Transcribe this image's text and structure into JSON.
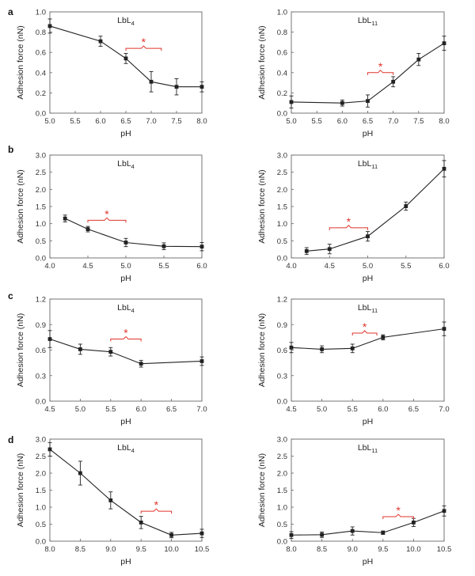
{
  "chart_data": [
    {
      "panel": "a",
      "label": "LbL4",
      "label_base": "LbL",
      "label_sub": "4",
      "type": "line",
      "xlabel": "pH",
      "ylabel": "Adhesion force (nN)",
      "xlim": [
        5.0,
        8.0
      ],
      "ylim": [
        0.0,
        1.0
      ],
      "xticks": [
        "5.0",
        "5.5",
        "6.0",
        "6.5",
        "7.0",
        "7.5",
        "8.0"
      ],
      "yticks": [
        "0.0",
        "0.2",
        "0.4",
        "0.6",
        "0.8",
        "1.0"
      ],
      "x": [
        5.0,
        6.0,
        6.5,
        7.0,
        7.5,
        8.0
      ],
      "y": [
        0.86,
        0.71,
        0.54,
        0.31,
        0.26,
        0.26
      ],
      "err": [
        0.07,
        0.05,
        0.05,
        0.1,
        0.08,
        0.05
      ],
      "significance": {
        "x1": 6.5,
        "x2": 7.2,
        "y": 0.64,
        "symbol": "*"
      }
    },
    {
      "panel": "",
      "label": "LbL11",
      "label_base": "LbL",
      "label_sub": "11",
      "type": "line",
      "xlabel": "pH",
      "ylabel": "Adhesion force (nN)",
      "xlim": [
        5.0,
        8.0
      ],
      "ylim": [
        0.0,
        1.0
      ],
      "xticks": [
        "5.0",
        "5.5",
        "6.0",
        "6.5",
        "7.0",
        "7.5",
        "8.0"
      ],
      "yticks": [
        "0.0",
        "0.2",
        "0.4",
        "0.6",
        "0.8",
        "1.0"
      ],
      "x": [
        5.0,
        6.0,
        6.5,
        7.0,
        7.5,
        8.0
      ],
      "y": [
        0.11,
        0.1,
        0.12,
        0.31,
        0.53,
        0.69
      ],
      "err": [
        0.06,
        0.03,
        0.06,
        0.05,
        0.06,
        0.07
      ],
      "significance": {
        "x1": 6.5,
        "x2": 7.0,
        "y": 0.4,
        "symbol": "*"
      }
    },
    {
      "panel": "b",
      "label": "LbL4",
      "label_base": "LbL",
      "label_sub": "4",
      "type": "line",
      "xlabel": "pH",
      "ylabel": "Adhesion force (nN)",
      "xlim": [
        4.0,
        6.0
      ],
      "ylim": [
        0.0,
        3.0
      ],
      "xticks": [
        "4.0",
        "4.5",
        "5.0",
        "5.5",
        "6.0"
      ],
      "yticks": [
        "0.0",
        "0.5",
        "1.0",
        "1.5",
        "2.0",
        "2.5",
        "3.0"
      ],
      "x": [
        4.2,
        4.5,
        5.0,
        5.5,
        6.0
      ],
      "y": [
        1.15,
        0.84,
        0.45,
        0.34,
        0.33
      ],
      "err": [
        0.1,
        0.08,
        0.12,
        0.1,
        0.12
      ],
      "significance": {
        "x1": 4.5,
        "x2": 5.0,
        "y": 1.1,
        "symbol": "*"
      }
    },
    {
      "panel": "",
      "label": "LbL11",
      "label_base": "LbL",
      "label_sub": "11",
      "type": "line",
      "xlabel": "pH",
      "ylabel": "Adhesion force (nN)",
      "xlim": [
        4.0,
        6.0
      ],
      "ylim": [
        0.0,
        3.0
      ],
      "xticks": [
        "4.0",
        "4.5",
        "5.0",
        "5.5",
        "6.0"
      ],
      "yticks": [
        "0.0",
        "0.5",
        "1.0",
        "1.5",
        "2.0",
        "2.5",
        "3.0"
      ],
      "x": [
        4.2,
        4.5,
        5.0,
        5.5,
        6.0
      ],
      "y": [
        0.2,
        0.26,
        0.63,
        1.51,
        2.6
      ],
      "err": [
        0.1,
        0.14,
        0.14,
        0.12,
        0.24
      ],
      "significance": {
        "x1": 4.5,
        "x2": 5.0,
        "y": 0.88,
        "symbol": "*"
      }
    },
    {
      "panel": "c",
      "label": "LbL4",
      "label_base": "LbL",
      "label_sub": "4",
      "type": "line",
      "xlabel": "pH",
      "ylabel": "Adhesion force (nN)",
      "xlim": [
        4.5,
        7.0
      ],
      "ylim": [
        0.0,
        1.2
      ],
      "xticks": [
        "4.5",
        "5.0",
        "5.5",
        "6.0",
        "6.5",
        "7.0"
      ],
      "yticks": [
        "0.0",
        "0.3",
        "0.6",
        "0.9",
        "1.2"
      ],
      "x": [
        4.5,
        5.0,
        5.5,
        6.0,
        7.0
      ],
      "y": [
        0.73,
        0.61,
        0.58,
        0.44,
        0.47
      ],
      "err": [
        0.1,
        0.06,
        0.05,
        0.04,
        0.05
      ],
      "significance": {
        "x1": 5.5,
        "x2": 6.0,
        "y": 0.73,
        "symbol": "*"
      }
    },
    {
      "panel": "",
      "label": "LbL11",
      "label_base": "LbL",
      "label_sub": "11",
      "type": "line",
      "xlabel": "pH",
      "ylabel": "Adhesion force (nN)",
      "xlim": [
        4.5,
        7.0
      ],
      "ylim": [
        0.0,
        1.2
      ],
      "xticks": [
        "4.5",
        "5.0",
        "5.5",
        "6.0",
        "6.5",
        "7.0"
      ],
      "yticks": [
        "0.0",
        "0.3",
        "0.6",
        "0.9",
        "1.2"
      ],
      "x": [
        4.5,
        5.0,
        5.5,
        6.0,
        7.0
      ],
      "y": [
        0.63,
        0.61,
        0.62,
        0.75,
        0.85
      ],
      "err": [
        0.06,
        0.04,
        0.05,
        0.03,
        0.08
      ],
      "significance": {
        "x1": 5.5,
        "x2": 5.9,
        "y": 0.8,
        "symbol": "*"
      }
    },
    {
      "panel": "d",
      "label": "LbL4",
      "label_base": "LbL",
      "label_sub": "4",
      "type": "line",
      "xlabel": "pH",
      "ylabel": "Adhesion force (nN)",
      "xlim": [
        8.0,
        10.5
      ],
      "ylim": [
        0.0,
        3.0
      ],
      "xticks": [
        "8.0",
        "8.5",
        "9.0",
        "9.5",
        "10.0",
        "10.5"
      ],
      "yticks": [
        "0.0",
        "0.5",
        "1.0",
        "1.5",
        "2.0",
        "2.5",
        "3.0"
      ],
      "x": [
        8.0,
        8.5,
        9.0,
        9.5,
        10.0,
        10.5
      ],
      "y": [
        2.7,
        2.0,
        1.2,
        0.55,
        0.18,
        0.23
      ],
      "err": [
        0.2,
        0.35,
        0.25,
        0.18,
        0.08,
        0.12
      ],
      "significance": {
        "x1": 9.5,
        "x2": 10.0,
        "y": 0.88,
        "symbol": "*"
      }
    },
    {
      "panel": "",
      "label": "LbL11",
      "label_base": "LbL",
      "label_sub": "11",
      "type": "line",
      "xlabel": "pH",
      "ylabel": "Adhesion force (nN)",
      "xlim": [
        8.0,
        10.5
      ],
      "ylim": [
        0.0,
        3.0
      ],
      "xticks": [
        "8.0",
        "8.5",
        "9.0",
        "9.5",
        "10.0",
        "10.5"
      ],
      "yticks": [
        "0.0",
        "0.5",
        "1.0",
        "1.5",
        "2.0",
        "2.5",
        "3.0"
      ],
      "x": [
        8.0,
        8.5,
        9.0,
        9.5,
        10.0,
        10.5
      ],
      "y": [
        0.18,
        0.19,
        0.3,
        0.25,
        0.55,
        0.89
      ],
      "err": [
        0.1,
        0.08,
        0.12,
        0.05,
        0.12,
        0.15
      ],
      "significance": {
        "x1": 9.5,
        "x2": 10.0,
        "y": 0.72,
        "symbol": "*"
      }
    }
  ],
  "colors": {
    "line": "#222222",
    "axis": "#666666",
    "significance": "#e0352b"
  }
}
